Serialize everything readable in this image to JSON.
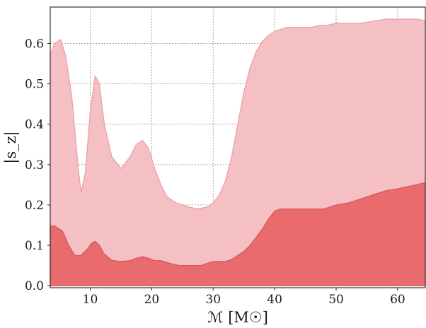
{
  "chart_data": {
    "type": "area",
    "xlabel": "ℳ [M☉]",
    "ylabel": "|s_z|",
    "xlim": [
      3.5,
      64.5
    ],
    "ylim": [
      -0.005,
      0.69
    ],
    "xticks": [
      10,
      20,
      30,
      40,
      50,
      60
    ],
    "yticks": [
      0.0,
      0.1,
      0.2,
      0.3,
      0.4,
      0.5,
      0.6
    ],
    "ytick_labels": [
      "0.0",
      "0.1",
      "0.2",
      "0.3",
      "0.4",
      "0.5",
      "0.6"
    ],
    "grid": true,
    "series": [
      {
        "color": "#f5c0c3",
        "edge_color": "#ec9ea4",
        "x": [
          3.5,
          4.2,
          5.2,
          6.0,
          7.0,
          8.0,
          8.5,
          9.2,
          10.0,
          10.8,
          11.5,
          12.3,
          13.5,
          15.0,
          16.5,
          17.5,
          18.5,
          19.5,
          20.5,
          21.5,
          22.5,
          24.0,
          26.0,
          27.5,
          29.0,
          30.0,
          31.0,
          32.0,
          33.0,
          34.0,
          35.0,
          36.0,
          37.0,
          38.0,
          39.0,
          40.0,
          42.0,
          44.0,
          46.0,
          47.5,
          48.5,
          50.0,
          51.0,
          52.5,
          54.0,
          56.0,
          58.0,
          60.0,
          62.0,
          63.0,
          64.0,
          64.5
        ],
        "values": [
          0.57,
          0.6,
          0.61,
          0.57,
          0.47,
          0.3,
          0.23,
          0.28,
          0.43,
          0.52,
          0.5,
          0.4,
          0.32,
          0.29,
          0.32,
          0.35,
          0.36,
          0.34,
          0.29,
          0.25,
          0.22,
          0.205,
          0.195,
          0.19,
          0.195,
          0.205,
          0.225,
          0.26,
          0.32,
          0.4,
          0.48,
          0.54,
          0.58,
          0.605,
          0.62,
          0.63,
          0.64,
          0.64,
          0.64,
          0.645,
          0.645,
          0.65,
          0.65,
          0.65,
          0.65,
          0.655,
          0.66,
          0.66,
          0.66,
          0.66,
          0.658,
          0.655
        ]
      },
      {
        "color": "#e96b6e",
        "edge_color": "#d95358",
        "x": [
          3.5,
          4.2,
          5.5,
          6.5,
          7.5,
          8.5,
          9.5,
          10.2,
          10.8,
          11.5,
          12.2,
          13.5,
          15.0,
          16.5,
          17.5,
          18.5,
          19.5,
          20.5,
          21.5,
          23.0,
          24.5,
          26.0,
          28.0,
          29.0,
          30.0,
          31.0,
          32.0,
          33.0,
          34.0,
          35.0,
          36.0,
          37.0,
          38.0,
          39.0,
          40.0,
          41.0,
          42.0,
          44.0,
          46.0,
          48.0,
          49.0,
          50.0,
          52.0,
          54.0,
          56.0,
          58.0,
          60.0,
          61.5,
          63.0,
          64.5
        ],
        "values": [
          0.148,
          0.148,
          0.135,
          0.1,
          0.075,
          0.075,
          0.09,
          0.105,
          0.11,
          0.1,
          0.08,
          0.063,
          0.06,
          0.062,
          0.068,
          0.072,
          0.068,
          0.062,
          0.062,
          0.055,
          0.05,
          0.05,
          0.05,
          0.055,
          0.06,
          0.06,
          0.06,
          0.065,
          0.075,
          0.085,
          0.1,
          0.12,
          0.14,
          0.165,
          0.185,
          0.19,
          0.19,
          0.19,
          0.19,
          0.19,
          0.195,
          0.2,
          0.205,
          0.215,
          0.225,
          0.235,
          0.24,
          0.245,
          0.25,
          0.255
        ]
      }
    ]
  }
}
